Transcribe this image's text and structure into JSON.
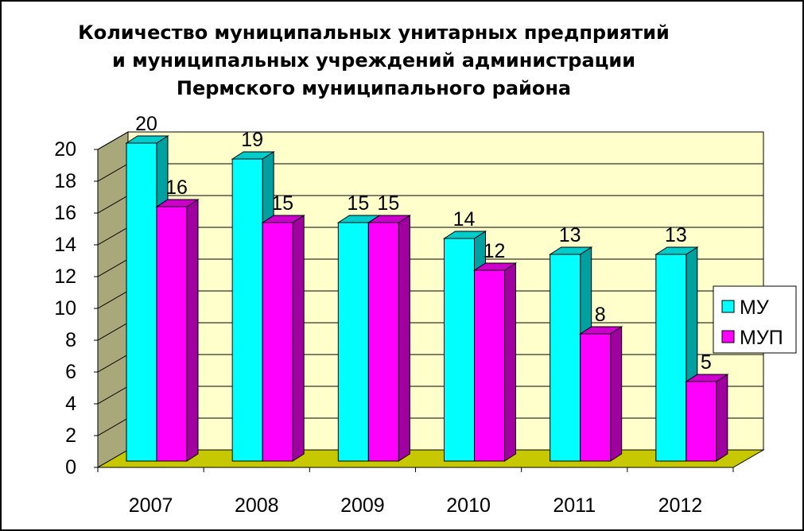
{
  "chart_data": {
    "type": "bar",
    "title_lines": [
      "Количество муниципальных унитарных предприятий",
      "и муниципальных учреждений администрации",
      "Пермского муниципального района"
    ],
    "categories": [
      "2007",
      "2008",
      "2009",
      "2010",
      "2011",
      "2012"
    ],
    "series": [
      {
        "name": "МУ",
        "values": [
          20,
          19,
          15,
          14,
          13,
          13
        ],
        "color": "#00ffff",
        "side": "#00a0a0",
        "top": "#00cccc"
      },
      {
        "name": "МУП",
        "values": [
          16,
          15,
          15,
          12,
          8,
          5
        ],
        "color": "#ff00ff",
        "side": "#a000a0",
        "top": "#cc00cc"
      }
    ],
    "yticks": [
      "0",
      "2",
      "4",
      "6",
      "8",
      "10",
      "12",
      "14",
      "16",
      "18",
      "20"
    ],
    "ylim": [
      0,
      20
    ],
    "grid": true,
    "legend_position": "right",
    "colors": {
      "back_wall": "#ffffcc",
      "side_wall": "#a8a87a",
      "floor": "#c8c800"
    }
  }
}
